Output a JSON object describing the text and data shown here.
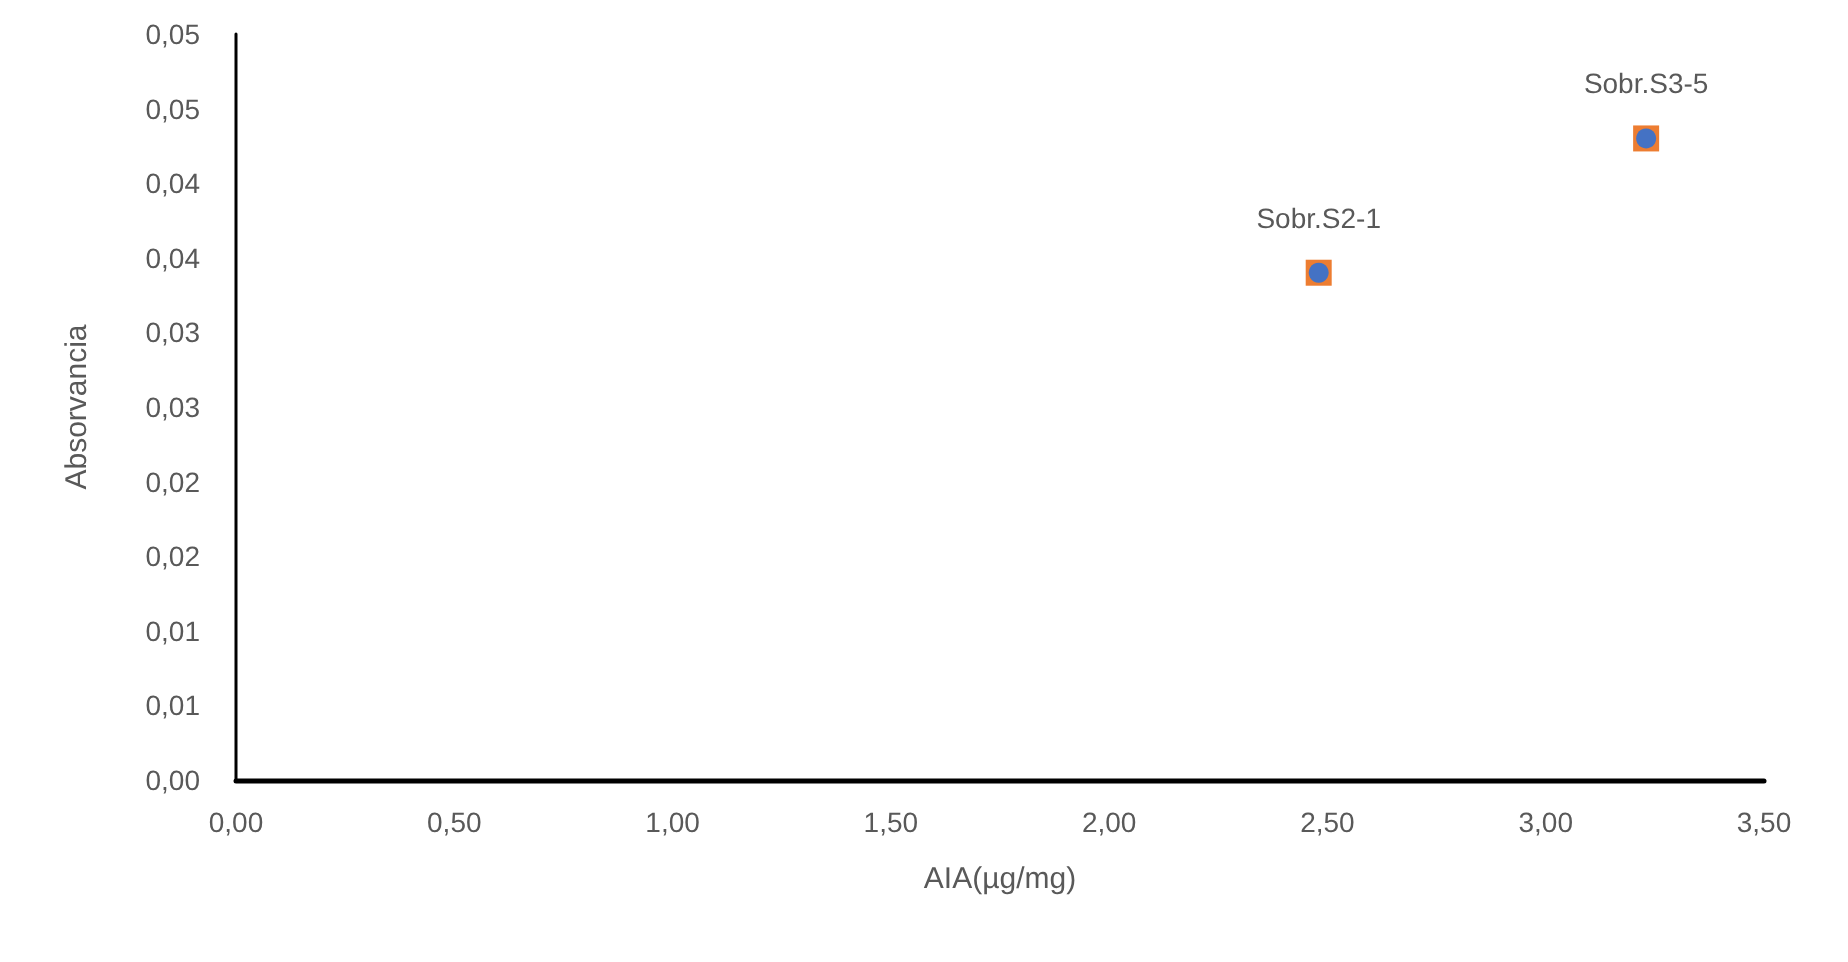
{
  "chart_data": {
    "type": "scatter",
    "xlabel": "AIA(µg/mg)",
    "ylabel": "Absorvancia",
    "x": [
      2.48,
      3.23
    ],
    "series": [
      {
        "color": "#ed7d31",
        "marker": "square",
        "values": [
          0.034,
          0.043
        ]
      },
      {
        "color": "#4472c4",
        "marker": "circle",
        "values": [
          0.034,
          0.043
        ]
      }
    ],
    "xlim": [
      0,
      3.5
    ],
    "xticks": [
      {
        "value": 0,
        "label": "0,00"
      },
      {
        "value": 0.5,
        "label": "0,50"
      },
      {
        "value": 1,
        "label": "1,00"
      },
      {
        "value": 1.5,
        "label": "1,50"
      },
      {
        "value": 2,
        "label": "2,00"
      },
      {
        "value": 2.5,
        "label": "2,50"
      },
      {
        "value": 3,
        "label": "3,00"
      },
      {
        "value": 3.5,
        "label": "3,50"
      }
    ],
    "ylim": [
      0,
      0.05
    ],
    "yticks": [
      {
        "value": 0,
        "label": "0,00"
      },
      {
        "value": 0.005,
        "label": "0,01"
      },
      {
        "value": 0.01,
        "label": "0,01"
      },
      {
        "value": 0.015,
        "label": "0,02"
      },
      {
        "value": 0.02,
        "label": "0,02"
      },
      {
        "value": 0.025,
        "label": "0,03"
      },
      {
        "value": 0.03,
        "label": "0,03"
      },
      {
        "value": 0.035,
        "label": "0,04"
      },
      {
        "value": 0.04,
        "label": "0,04"
      },
      {
        "value": 0.045,
        "label": "0,05"
      },
      {
        "value": 0.05,
        "label": "0,05"
      }
    ],
    "annotations": [
      {
        "text": "Sobr.S2-1",
        "x": 2.48,
        "y": 0.034
      },
      {
        "text": "Sobr.S3-5",
        "x": 3.23,
        "y": 0.043
      }
    ],
    "grid": false
  }
}
